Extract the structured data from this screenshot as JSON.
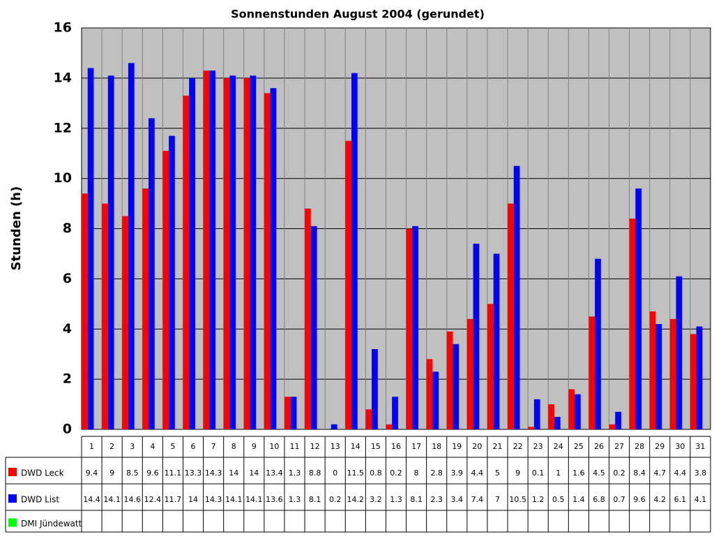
{
  "chart_data": {
    "type": "bar",
    "title": "Sonnenstunden August 2004 (gerundet)",
    "y_label": "Stunden (h)",
    "categories": [
      "1",
      "2",
      "3",
      "4",
      "5",
      "6",
      "7",
      "8",
      "9",
      "10",
      "11",
      "12",
      "13",
      "14",
      "15",
      "16",
      "17",
      "18",
      "19",
      "20",
      "21",
      "22",
      "23",
      "24",
      "25",
      "26",
      "27",
      "28",
      "29",
      "30",
      "31"
    ],
    "series": [
      {
        "name": "DWD Leck",
        "color": "#ff0000",
        "values": [
          9.4,
          9,
          8.5,
          9.6,
          11.1,
          13.3,
          14.3,
          14,
          14,
          13.4,
          1.3,
          8.8,
          0,
          11.5,
          0.8,
          0.2,
          8,
          2.8,
          3.9,
          4.4,
          5,
          9,
          0.1,
          1,
          1.6,
          4.5,
          0.2,
          8.4,
          4.7,
          4.4,
          3.8
        ]
      },
      {
        "name": "DWD List",
        "color": "#0000ff",
        "values": [
          14.4,
          14.1,
          14.6,
          12.4,
          11.7,
          14,
          14.3,
          14.1,
          14.1,
          13.6,
          1.3,
          8.1,
          0.2,
          14.2,
          3.2,
          1.3,
          8.1,
          2.3,
          3.4,
          7.4,
          7,
          10.5,
          1.2,
          0.5,
          1.4,
          6.8,
          0.7,
          9.6,
          4.2,
          6.1,
          4.1
        ]
      },
      {
        "name": "DMI Jündewatt",
        "color": "#00ff00",
        "values": [
          null,
          null,
          null,
          null,
          null,
          null,
          null,
          null,
          null,
          null,
          null,
          null,
          null,
          null,
          null,
          null,
          null,
          null,
          null,
          null,
          null,
          null,
          null,
          null,
          null,
          null,
          null,
          null,
          null,
          null,
          null
        ]
      }
    ],
    "ylim": [
      0,
      16
    ],
    "yticks": [
      0,
      2,
      4,
      6,
      8,
      10,
      12,
      14,
      16
    ],
    "grid": true,
    "background": "#c0c0c0"
  }
}
